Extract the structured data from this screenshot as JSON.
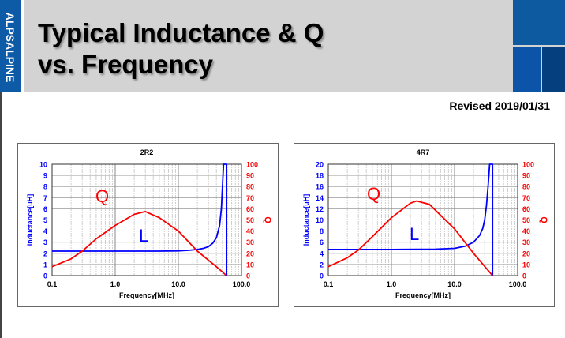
{
  "header": {
    "logo": "ALPSALPINE",
    "title_line1": "Typical Inductance & Q",
    "title_line2": "vs. Frequency",
    "revised": "Revised 2019/01/31"
  },
  "colors": {
    "L": "#0000ff",
    "Q": "#ff0000",
    "brand": "#0d5aa7"
  },
  "chart_data": [
    {
      "type": "line",
      "title": "2R2",
      "xlabel": "Frequency[MHz]",
      "ylabel": "Inductance[uH]",
      "y2label": "Q",
      "xscale": "log",
      "xlim": [
        0.1,
        100
      ],
      "xticks": [
        "0.1",
        "1.0",
        "10.0",
        "100.0"
      ],
      "ylim": [
        0,
        10
      ],
      "yticks": [
        "0",
        "1",
        "2",
        "3",
        "4",
        "5",
        "6",
        "7",
        "8",
        "9",
        "10"
      ],
      "y2lim": [
        0,
        100
      ],
      "y2ticks": [
        "0",
        "10",
        "20",
        "30",
        "40",
        "50",
        "60",
        "70",
        "80",
        "90",
        "100"
      ],
      "grid": true,
      "annotations": [
        "Q",
        "L"
      ],
      "series": [
        {
          "name": "L",
          "axis": "left",
          "x": [
            0.1,
            1,
            5,
            10,
            15,
            20,
            25,
            30,
            35,
            40,
            45,
            48,
            50,
            52,
            58,
            58
          ],
          "y": [
            2.2,
            2.2,
            2.2,
            2.22,
            2.28,
            2.35,
            2.45,
            2.6,
            2.9,
            3.4,
            4.5,
            6,
            8,
            10,
            10,
            0
          ]
        },
        {
          "name": "Q",
          "axis": "right",
          "x": [
            0.1,
            0.2,
            0.3,
            0.5,
            1,
            2,
            3,
            5,
            10,
            20,
            40,
            58
          ],
          "y": [
            8,
            15,
            22,
            33,
            45,
            55,
            57.5,
            52,
            40,
            22,
            8,
            0
          ]
        }
      ]
    },
    {
      "type": "line",
      "title": "4R7",
      "xlabel": "Frequency[MHz]",
      "ylabel": "Inductance[uH]",
      "y2label": "Q",
      "xscale": "log",
      "xlim": [
        0.1,
        100
      ],
      "xticks": [
        "0.1",
        "1.0",
        "10.0",
        "100.0"
      ],
      "ylim": [
        0,
        20
      ],
      "yticks": [
        "0",
        "2",
        "4",
        "6",
        "8",
        "10",
        "12",
        "14",
        "16",
        "18",
        "20"
      ],
      "y2lim": [
        0,
        100
      ],
      "y2ticks": [
        "0",
        "10",
        "20",
        "30",
        "40",
        "50",
        "60",
        "70",
        "80",
        "90",
        "100"
      ],
      "grid": true,
      "annotations": [
        "Q",
        "L"
      ],
      "series": [
        {
          "name": "L",
          "axis": "left",
          "x": [
            0.1,
            1,
            5,
            10,
            15,
            20,
            25,
            28,
            30,
            32,
            34,
            36,
            36.5,
            40,
            40
          ],
          "y": [
            4.7,
            4.7,
            4.75,
            4.9,
            5.3,
            6,
            7.2,
            8.5,
            10,
            12.5,
            16,
            20,
            20,
            20,
            0
          ]
        },
        {
          "name": "Q",
          "axis": "right",
          "x": [
            0.1,
            0.2,
            0.3,
            0.5,
            1,
            2,
            2.5,
            4,
            10,
            20,
            40
          ],
          "y": [
            8,
            16,
            23,
            35,
            52,
            65,
            67,
            64,
            42,
            20,
            0
          ]
        }
      ]
    }
  ]
}
